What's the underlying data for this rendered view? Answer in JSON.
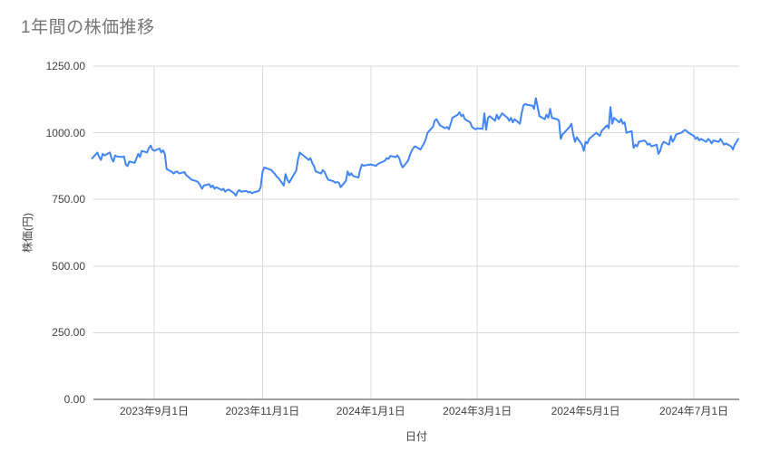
{
  "colors": {
    "background": "#ffffff",
    "line": "#4285f4",
    "gridline": "#d9d9d9",
    "axis_line": "#424242",
    "title": "#757575",
    "tick_label": "#424242"
  },
  "chart_data": {
    "type": "line",
    "title": "1年間の株価推移",
    "xlabel": "日付",
    "ylabel": "株価(円)",
    "legend": "none",
    "grid": true,
    "ylim": [
      0,
      1250
    ],
    "y_ticks": [
      {
        "value": 0,
        "label": "0.00"
      },
      {
        "value": 250,
        "label": "250.00"
      },
      {
        "value": 500,
        "label": "500.00"
      },
      {
        "value": 750,
        "label": "750.00"
      },
      {
        "value": 1000,
        "label": "1000.00"
      },
      {
        "value": 1250,
        "label": "1250.00"
      }
    ],
    "x_ticks": [
      {
        "date": "2023-09-01",
        "label": "2023年9月1日"
      },
      {
        "date": "2023-11-01",
        "label": "2023年11月1日"
      },
      {
        "date": "2024-01-01",
        "label": "2024年1月1日"
      },
      {
        "date": "2024-03-01",
        "label": "2024年3月1日"
      },
      {
        "date": "2024-05-01",
        "label": "2024年5月1日"
      },
      {
        "date": "2024-07-01",
        "label": "2024年7月1日"
      }
    ],
    "points": [
      [
        "2023-07-28",
        904
      ],
      [
        "2023-07-31",
        926
      ],
      [
        "2023-08-01",
        909
      ],
      [
        "2023-08-02",
        898
      ],
      [
        "2023-08-03",
        921
      ],
      [
        "2023-08-04",
        915
      ],
      [
        "2023-08-07",
        926
      ],
      [
        "2023-08-08",
        904
      ],
      [
        "2023-08-09",
        892
      ],
      [
        "2023-08-10",
        915
      ],
      [
        "2023-08-11",
        911
      ],
      [
        "2023-08-14",
        909
      ],
      [
        "2023-08-15",
        911
      ],
      [
        "2023-08-16",
        881
      ],
      [
        "2023-08-17",
        875
      ],
      [
        "2023-08-18",
        892
      ],
      [
        "2023-08-21",
        887
      ],
      [
        "2023-08-22",
        904
      ],
      [
        "2023-08-23",
        921
      ],
      [
        "2023-08-24",
        909
      ],
      [
        "2023-08-25",
        932
      ],
      [
        "2023-08-28",
        926
      ],
      [
        "2023-08-29",
        943
      ],
      [
        "2023-08-30",
        952
      ],
      [
        "2023-08-31",
        937
      ],
      [
        "2023-09-01",
        932
      ],
      [
        "2023-09-04",
        941
      ],
      [
        "2023-09-05",
        926
      ],
      [
        "2023-09-06",
        934
      ],
      [
        "2023-09-07",
        921
      ],
      [
        "2023-09-08",
        864
      ],
      [
        "2023-09-11",
        853
      ],
      [
        "2023-09-12",
        847
      ],
      [
        "2023-09-13",
        853
      ],
      [
        "2023-09-14",
        855
      ],
      [
        "2023-09-15",
        847
      ],
      [
        "2023-09-18",
        853
      ],
      [
        "2023-09-19",
        841
      ],
      [
        "2023-09-20",
        836
      ],
      [
        "2023-09-21",
        830
      ],
      [
        "2023-09-22",
        824
      ],
      [
        "2023-09-25",
        818
      ],
      [
        "2023-09-26",
        813
      ],
      [
        "2023-09-27",
        802
      ],
      [
        "2023-09-28",
        790
      ],
      [
        "2023-09-29",
        802
      ],
      [
        "2023-10-02",
        807
      ],
      [
        "2023-10-03",
        796
      ],
      [
        "2023-10-04",
        802
      ],
      [
        "2023-10-05",
        790
      ],
      [
        "2023-10-06",
        796
      ],
      [
        "2023-10-09",
        785
      ],
      [
        "2023-10-10",
        790
      ],
      [
        "2023-10-11",
        779
      ],
      [
        "2023-10-12",
        785
      ],
      [
        "2023-10-13",
        787
      ],
      [
        "2023-10-16",
        773
      ],
      [
        "2023-10-17",
        764
      ],
      [
        "2023-10-18",
        779
      ],
      [
        "2023-10-19",
        785
      ],
      [
        "2023-10-20",
        779
      ],
      [
        "2023-10-23",
        782
      ],
      [
        "2023-10-24",
        776
      ],
      [
        "2023-10-25",
        779
      ],
      [
        "2023-10-26",
        773
      ],
      [
        "2023-10-27",
        776
      ],
      [
        "2023-10-30",
        782
      ],
      [
        "2023-10-31",
        796
      ],
      [
        "2023-11-01",
        853
      ],
      [
        "2023-11-02",
        870
      ],
      [
        "2023-11-06",
        860
      ],
      [
        "2023-11-07",
        853
      ],
      [
        "2023-11-08",
        845
      ],
      [
        "2023-11-09",
        836
      ],
      [
        "2023-11-10",
        830
      ],
      [
        "2023-11-13",
        802
      ],
      [
        "2023-11-14",
        845
      ],
      [
        "2023-11-15",
        824
      ],
      [
        "2023-11-16",
        813
      ],
      [
        "2023-11-17",
        824
      ],
      [
        "2023-11-20",
        858
      ],
      [
        "2023-11-21",
        899
      ],
      [
        "2023-11-22",
        926
      ],
      [
        "2023-11-24",
        915
      ],
      [
        "2023-11-27",
        898
      ],
      [
        "2023-11-28",
        905
      ],
      [
        "2023-11-29",
        887
      ],
      [
        "2023-11-30",
        875
      ],
      [
        "2023-12-01",
        855
      ],
      [
        "2023-12-04",
        847
      ],
      [
        "2023-12-05",
        860
      ],
      [
        "2023-12-06",
        853
      ],
      [
        "2023-12-07",
        836
      ],
      [
        "2023-12-08",
        824
      ],
      [
        "2023-12-11",
        818
      ],
      [
        "2023-12-12",
        813
      ],
      [
        "2023-12-13",
        815
      ],
      [
        "2023-12-14",
        813
      ],
      [
        "2023-12-15",
        796
      ],
      [
        "2023-12-18",
        820
      ],
      [
        "2023-12-19",
        855
      ],
      [
        "2023-12-20",
        840
      ],
      [
        "2023-12-21",
        848
      ],
      [
        "2023-12-22",
        838
      ],
      [
        "2023-12-25",
        832
      ],
      [
        "2023-12-26",
        860
      ],
      [
        "2023-12-27",
        881
      ],
      [
        "2023-12-28",
        876
      ],
      [
        "2023-12-29",
        878
      ],
      [
        "2024-01-01",
        881
      ],
      [
        "2024-01-04",
        876
      ],
      [
        "2024-01-05",
        883
      ],
      [
        "2024-01-09",
        895
      ],
      [
        "2024-01-10",
        905
      ],
      [
        "2024-01-11",
        902
      ],
      [
        "2024-01-12",
        913
      ],
      [
        "2024-01-15",
        909
      ],
      [
        "2024-01-16",
        915
      ],
      [
        "2024-01-17",
        905
      ],
      [
        "2024-01-18",
        883
      ],
      [
        "2024-01-19",
        870
      ],
      [
        "2024-01-22",
        895
      ],
      [
        "2024-01-23",
        915
      ],
      [
        "2024-01-24",
        932
      ],
      [
        "2024-01-25",
        943
      ],
      [
        "2024-01-26",
        949
      ],
      [
        "2024-01-29",
        937
      ],
      [
        "2024-01-30",
        949
      ],
      [
        "2024-01-31",
        960
      ],
      [
        "2024-02-01",
        977
      ],
      [
        "2024-02-02",
        1000
      ],
      [
        "2024-02-05",
        1022
      ],
      [
        "2024-02-06",
        1045
      ],
      [
        "2024-02-07",
        1051
      ],
      [
        "2024-02-08",
        1039
      ],
      [
        "2024-02-09",
        1028
      ],
      [
        "2024-02-12",
        1017
      ],
      [
        "2024-02-13",
        1022
      ],
      [
        "2024-02-14",
        1013
      ],
      [
        "2024-02-15",
        1034
      ],
      [
        "2024-02-16",
        1056
      ],
      [
        "2024-02-19",
        1068
      ],
      [
        "2024-02-20",
        1077
      ],
      [
        "2024-02-21",
        1062
      ],
      [
        "2024-02-22",
        1068
      ],
      [
        "2024-02-23",
        1051
      ],
      [
        "2024-02-26",
        1039
      ],
      [
        "2024-02-27",
        1022
      ],
      [
        "2024-02-28",
        1017
      ],
      [
        "2024-02-29",
        1013
      ],
      [
        "2024-03-01",
        1017
      ],
      [
        "2024-03-04",
        1015
      ],
      [
        "2024-03-05",
        1073
      ],
      [
        "2024-03-06",
        1011
      ],
      [
        "2024-03-07",
        1056
      ],
      [
        "2024-03-08",
        1062
      ],
      [
        "2024-03-11",
        1045
      ],
      [
        "2024-03-12",
        1068
      ],
      [
        "2024-03-13",
        1051
      ],
      [
        "2024-03-14",
        1062
      ],
      [
        "2024-03-15",
        1073
      ],
      [
        "2024-03-18",
        1056
      ],
      [
        "2024-03-19",
        1045
      ],
      [
        "2024-03-20",
        1056
      ],
      [
        "2024-03-21",
        1039
      ],
      [
        "2024-03-22",
        1051
      ],
      [
        "2024-03-25",
        1034
      ],
      [
        "2024-03-26",
        1073
      ],
      [
        "2024-03-27",
        1102
      ],
      [
        "2024-03-28",
        1108
      ],
      [
        "2024-03-29",
        1105
      ],
      [
        "2024-04-01",
        1102
      ],
      [
        "2024-04-02",
        1090
      ],
      [
        "2024-04-03",
        1130
      ],
      [
        "2024-04-04",
        1096
      ],
      [
        "2024-04-05",
        1062
      ],
      [
        "2024-04-08",
        1051
      ],
      [
        "2024-04-09",
        1068
      ],
      [
        "2024-04-10",
        1056
      ],
      [
        "2024-04-11",
        1090
      ],
      [
        "2024-04-12",
        1056
      ],
      [
        "2024-04-15",
        1051
      ],
      [
        "2024-04-16",
        1045
      ],
      [
        "2024-04-17",
        977
      ],
      [
        "2024-04-18",
        994
      ],
      [
        "2024-04-19",
        1000
      ],
      [
        "2024-04-22",
        1022
      ],
      [
        "2024-04-23",
        1034
      ],
      [
        "2024-04-24",
        994
      ],
      [
        "2024-04-25",
        966
      ],
      [
        "2024-04-26",
        983
      ],
      [
        "2024-04-29",
        955
      ],
      [
        "2024-04-30",
        932
      ],
      [
        "2024-05-01",
        966
      ],
      [
        "2024-05-02",
        960
      ],
      [
        "2024-05-03",
        977
      ],
      [
        "2024-05-07",
        1000
      ],
      [
        "2024-05-08",
        994
      ],
      [
        "2024-05-09",
        988
      ],
      [
        "2024-05-10",
        1006
      ],
      [
        "2024-05-13",
        1028
      ],
      [
        "2024-05-14",
        1017
      ],
      [
        "2024-05-15",
        1096
      ],
      [
        "2024-05-16",
        1034
      ],
      [
        "2024-05-17",
        1056
      ],
      [
        "2024-05-20",
        1039
      ],
      [
        "2024-05-21",
        1051
      ],
      [
        "2024-05-22",
        1034
      ],
      [
        "2024-05-23",
        1039
      ],
      [
        "2024-05-24",
        1000
      ],
      [
        "2024-05-27",
        1006
      ],
      [
        "2024-05-28",
        943
      ],
      [
        "2024-05-29",
        955
      ],
      [
        "2024-05-30",
        949
      ],
      [
        "2024-05-31",
        966
      ],
      [
        "2024-06-03",
        971
      ],
      [
        "2024-06-04",
        966
      ],
      [
        "2024-06-05",
        955
      ],
      [
        "2024-06-06",
        960
      ],
      [
        "2024-06-07",
        949
      ],
      [
        "2024-06-10",
        955
      ],
      [
        "2024-06-11",
        921
      ],
      [
        "2024-06-12",
        932
      ],
      [
        "2024-06-13",
        955
      ],
      [
        "2024-06-14",
        966
      ],
      [
        "2024-06-17",
        955
      ],
      [
        "2024-06-18",
        988
      ],
      [
        "2024-06-19",
        966
      ],
      [
        "2024-06-20",
        977
      ],
      [
        "2024-06-21",
        994
      ],
      [
        "2024-06-24",
        1000
      ],
      [
        "2024-06-25",
        1006
      ],
      [
        "2024-06-26",
        1011
      ],
      [
        "2024-06-27",
        1006
      ],
      [
        "2024-06-28",
        1000
      ],
      [
        "2024-07-01",
        988
      ],
      [
        "2024-07-02",
        977
      ],
      [
        "2024-07-03",
        983
      ],
      [
        "2024-07-04",
        971
      ],
      [
        "2024-07-05",
        977
      ],
      [
        "2024-07-08",
        966
      ],
      [
        "2024-07-09",
        977
      ],
      [
        "2024-07-10",
        971
      ],
      [
        "2024-07-11",
        960
      ],
      [
        "2024-07-12",
        971
      ],
      [
        "2024-07-15",
        966
      ],
      [
        "2024-07-16",
        977
      ],
      [
        "2024-07-17",
        966
      ],
      [
        "2024-07-18",
        955
      ],
      [
        "2024-07-19",
        960
      ],
      [
        "2024-07-22",
        949
      ],
      [
        "2024-07-23",
        937
      ],
      [
        "2024-07-24",
        955
      ],
      [
        "2024-07-25",
        966
      ],
      [
        "2024-07-26",
        977
      ]
    ]
  }
}
